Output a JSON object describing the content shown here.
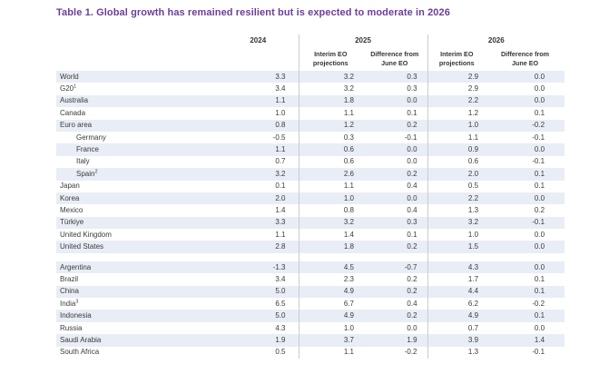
{
  "title": "Table 1. Global growth has remained resilient but is expected to moderate in 2026",
  "header": {
    "y2024": "2024",
    "y2025": "2025",
    "y2026": "2026",
    "sub_interim": "Interim EO\nprojections",
    "sub_difference": "Difference from\nJune EO"
  },
  "colors": {
    "title": "#6c3d99",
    "row_stripe": "#e9edf5",
    "separator_line": "#c8ccd2",
    "body_text": "#3b3b3b"
  },
  "chart_data": {
    "type": "table",
    "title": "Table 1. Global growth has remained resilient but is expected to moderate in 2026",
    "columns": [
      "2024",
      "2025 Interim EO projections",
      "2025 Difference from June EO",
      "2026 Interim EO projections",
      "2026 Difference from June EO"
    ],
    "layout": {
      "striped": true,
      "two_row_groups": true,
      "vertical_separators_after_columns": [
        1,
        3
      ]
    },
    "rows": [
      {
        "label": "World",
        "values": [
          3.3,
          3.2,
          0.3,
          2.9,
          0.0
        ]
      },
      {
        "label": "G20",
        "footnote": "1",
        "values": [
          3.4,
          3.2,
          0.3,
          2.9,
          0.0
        ]
      },
      {
        "label": "Australia",
        "values": [
          1.1,
          1.8,
          0.0,
          2.2,
          0.0
        ]
      },
      {
        "label": "Canada",
        "values": [
          1.0,
          1.1,
          0.1,
          1.2,
          0.1
        ]
      },
      {
        "label": "Euro area",
        "values": [
          0.8,
          1.2,
          0.2,
          1.0,
          -0.2
        ]
      },
      {
        "label": "Germany",
        "indent": true,
        "values": [
          -0.5,
          0.3,
          -0.1,
          1.1,
          -0.1
        ]
      },
      {
        "label": "France",
        "indent": true,
        "values": [
          1.1,
          0.6,
          0.0,
          0.9,
          0.0
        ]
      },
      {
        "label": "Italy",
        "indent": true,
        "values": [
          0.7,
          0.6,
          0.0,
          0.6,
          -0.1
        ]
      },
      {
        "label": "Spain",
        "indent": true,
        "footnote": "2",
        "values": [
          3.2,
          2.6,
          0.2,
          2.0,
          0.1
        ]
      },
      {
        "label": "Japan",
        "values": [
          0.1,
          1.1,
          0.4,
          0.5,
          0.1
        ]
      },
      {
        "label": "Korea",
        "values": [
          2.0,
          1.0,
          0.0,
          2.2,
          0.0
        ]
      },
      {
        "label": "Mexico",
        "values": [
          1.4,
          0.8,
          0.4,
          1.3,
          0.2
        ]
      },
      {
        "label": "Türkiye",
        "values": [
          3.3,
          3.2,
          0.3,
          3.2,
          -0.1
        ]
      },
      {
        "label": "United Kingdom",
        "values": [
          1.1,
          1.4,
          0.1,
          1.0,
          0.0
        ]
      },
      {
        "label": "United States",
        "values": [
          2.8,
          1.8,
          0.2,
          1.5,
          0.0
        ]
      },
      {
        "label": "Argentina",
        "spacer_before": true,
        "values": [
          -1.3,
          4.5,
          -0.7,
          4.3,
          0.0
        ]
      },
      {
        "label": "Brazil",
        "values": [
          3.4,
          2.3,
          0.2,
          1.7,
          0.1
        ]
      },
      {
        "label": "China",
        "values": [
          5.0,
          4.9,
          0.2,
          4.4,
          0.1
        ]
      },
      {
        "label": "India",
        "footnote": "3",
        "values": [
          6.5,
          6.7,
          0.4,
          6.2,
          -0.2
        ]
      },
      {
        "label": "Indonesia",
        "values": [
          5.0,
          4.9,
          0.2,
          4.9,
          0.1
        ]
      },
      {
        "label": "Russia",
        "values": [
          4.3,
          1.0,
          0.0,
          0.7,
          0.0
        ]
      },
      {
        "label": "Saudi Arabia",
        "values": [
          1.9,
          3.7,
          1.9,
          3.9,
          1.4
        ]
      },
      {
        "label": "South Africa",
        "values": [
          0.5,
          1.1,
          -0.2,
          1.3,
          -0.1
        ]
      }
    ]
  }
}
